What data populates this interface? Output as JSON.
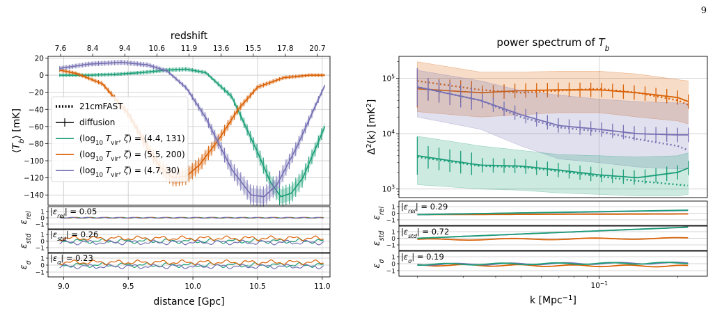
{
  "page_number": "9",
  "colors": {
    "green": "#1b9e77",
    "orange": "#d95f02",
    "purple": "#7570b3",
    "grid": "#c8c8c8"
  },
  "chart_data": [
    {
      "type": "line",
      "title": "",
      "xlabel": "distance [Gpc]",
      "ylabel": "⟨T_b⟩ [mK]",
      "top_axis_label": "redshift",
      "top_ticks": [
        "7.6",
        "8.4",
        "9.4",
        "10.6",
        "11.9",
        "13.6",
        "15.5",
        "17.8",
        "20.7"
      ],
      "xticks": [
        "9.0",
        "9.5",
        "10.0",
        "10.5",
        "11.0"
      ],
      "xlim": [
        8.88,
        11.06
      ],
      "ylim": [
        -152,
        22
      ],
      "yticks": [
        20,
        0,
        -20,
        -40,
        -60,
        -80,
        -100,
        -120,
        -140
      ],
      "legend_position": "center-left",
      "legend": [
        {
          "label": "21cmFAST",
          "style": "dotted"
        },
        {
          "label": "diffusion",
          "style": "errorbar"
        },
        {
          "label": "(log10 Tvir, ζ) = (4.4, 131)",
          "color": "green"
        },
        {
          "label": "(log10 Tvir, ζ) = (5.5, 200)",
          "color": "orange"
        },
        {
          "label": "(log10 Tvir, ζ) = (4.7, 30)",
          "color": "purple"
        }
      ],
      "series": [
        {
          "color": "green",
          "x": [
            8.97,
            9.2,
            9.4,
            9.6,
            9.8,
            9.95,
            10.1,
            10.3,
            10.5,
            10.6,
            10.68,
            10.76,
            10.85,
            10.95,
            11.02
          ],
          "y": [
            0,
            0,
            1,
            3,
            6,
            7,
            3,
            -25,
            -90,
            -125,
            -142,
            -138,
            -120,
            -85,
            -60
          ]
        },
        {
          "color": "orange",
          "x": [
            8.97,
            9.1,
            9.3,
            9.5,
            9.65,
            9.75,
            9.85,
            9.95,
            10.05,
            10.2,
            10.35,
            10.5,
            10.7,
            10.9,
            11.02
          ],
          "y": [
            6,
            2,
            -10,
            -45,
            -85,
            -108,
            -120,
            -118,
            -105,
            -75,
            -40,
            -14,
            -3,
            0,
            0
          ]
        },
        {
          "color": "purple",
          "x": [
            8.97,
            9.2,
            9.45,
            9.65,
            9.8,
            9.95,
            10.1,
            10.3,
            10.45,
            10.55,
            10.65,
            10.8,
            10.95,
            11.02
          ],
          "y": [
            8,
            13,
            15,
            12,
            5,
            -15,
            -50,
            -110,
            -140,
            -142,
            -128,
            -85,
            -35,
            -12
          ]
        }
      ],
      "residuals": [
        {
          "ylabel": "ε_rel",
          "annotation": "|ε_rel| = 0.05",
          "yticks": [
            "1",
            "0",
            "−1"
          ]
        },
        {
          "ylabel": "ε_std",
          "annotation": "|ε_std| = 0.26",
          "yticks": [
            "1",
            "0",
            "−1"
          ]
        },
        {
          "ylabel": "ε_σ",
          "annotation": "|ε_σ| = 0.23",
          "yticks": [
            "1",
            "0",
            "−1"
          ]
        }
      ]
    },
    {
      "type": "line",
      "title": "power spectrum of T_b",
      "xlabel": "k [Mpc⁻¹]",
      "ylabel": "Δ²(k) [mK²]",
      "xscale": "log",
      "yscale": "log",
      "xlim": [
        0.017,
        0.26
      ],
      "ylim": [
        700,
        250000
      ],
      "xticks": [
        {
          "value": 0.1,
          "label": "10⁻¹"
        }
      ],
      "yticks": [
        {
          "value": 1000,
          "label": "10³"
        },
        {
          "value": 10000,
          "label": "10⁴"
        },
        {
          "value": 100000,
          "label": "10⁵"
        }
      ],
      "series": [
        {
          "color": "orange",
          "k": [
            0.02,
            0.035,
            0.05,
            0.07,
            0.1,
            0.14,
            0.2,
            0.22
          ],
          "diffusion": [
            65000,
            55000,
            60000,
            62000,
            62000,
            55000,
            45000,
            38000
          ],
          "fast": [
            90000,
            62000,
            55000,
            60000,
            65000,
            55000,
            40000,
            33000
          ],
          "band_low": [
            25000,
            20000,
            22000,
            24000,
            24000,
            20000,
            17000,
            15000
          ],
          "band_high": [
            200000,
            130000,
            130000,
            135000,
            135000,
            120000,
            95000,
            90000
          ]
        },
        {
          "color": "purple",
          "k": [
            0.02,
            0.035,
            0.05,
            0.07,
            0.1,
            0.14,
            0.2,
            0.22
          ],
          "diffusion": [
            70000,
            40000,
            22000,
            14000,
            12000,
            10000,
            9500,
            9500
          ],
          "fast": [
            70000,
            40000,
            20000,
            13000,
            11000,
            8000,
            6000,
            5000
          ],
          "band_low": [
            20000,
            12000,
            6000,
            3500,
            3000,
            2500,
            2300,
            2300
          ],
          "band_high": [
            140000,
            90000,
            60000,
            50000,
            42000,
            38000,
            36000,
            35000
          ]
        },
        {
          "color": "green",
          "k": [
            0.02,
            0.035,
            0.05,
            0.07,
            0.1,
            0.14,
            0.2,
            0.22
          ],
          "diffusion": [
            4000,
            2700,
            2600,
            2200,
            1800,
            1600,
            2000,
            2400
          ],
          "fast": [
            3800,
            2600,
            2500,
            2100,
            1700,
            1400,
            1200,
            1150
          ],
          "band_low": [
            1200,
            1000,
            950,
            850,
            800,
            750,
            750,
            800
          ],
          "band_high": [
            9000,
            6000,
            5000,
            4200,
            4000,
            3800,
            4000,
            4500
          ]
        }
      ],
      "residuals": [
        {
          "ylabel": "ε_rel",
          "annotation": "|ε_rel| = 0.29",
          "yticks": [
            "1",
            "0",
            "−1"
          ]
        },
        {
          "ylabel": "ε_std",
          "annotation": "|ε_std| = 0.72",
          "yticks": [
            "1",
            "0",
            "−1"
          ]
        },
        {
          "ylabel": "ε_σ",
          "annotation": "|ε_σ| = 0.19",
          "yticks": [
            "1",
            "0",
            "−1"
          ]
        }
      ]
    }
  ]
}
